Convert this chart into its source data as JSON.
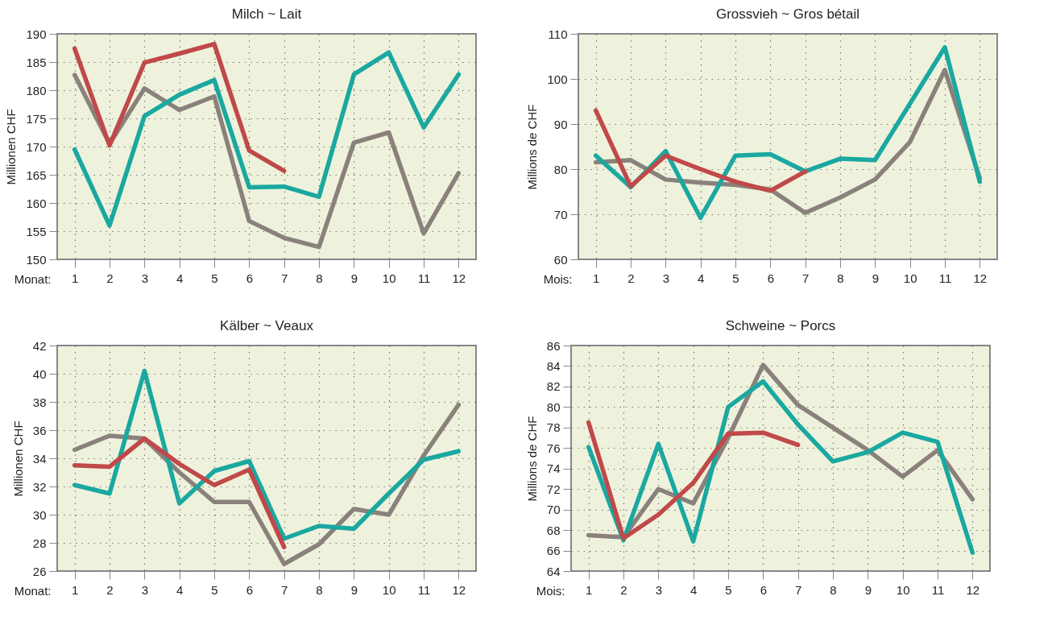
{
  "chart_data": [
    {
      "type": "line",
      "title": "Milch ~ Lait",
      "xlabel": "Monat:",
      "ylabel": "Millionen CHF",
      "x": [
        1,
        2,
        3,
        4,
        5,
        6,
        7,
        8,
        9,
        10,
        11,
        12
      ],
      "xlim": [
        0.5,
        12.5
      ],
      "xticks": [
        1,
        2,
        3,
        4,
        5,
        6,
        7,
        8,
        9,
        10,
        11,
        12
      ],
      "ylim": [
        150,
        190
      ],
      "yticks": [
        150,
        155,
        160,
        165,
        170,
        175,
        180,
        185,
        190
      ],
      "grid": true,
      "legend": false,
      "line_style": "solid",
      "marker": "none",
      "series": [
        {
          "color": "#8a817c",
          "values": [
            182.7,
            170.5,
            180.3,
            176.5,
            178.9,
            156.8,
            153.8,
            152.2,
            170.7,
            172.5,
            154.6,
            165.3
          ]
        },
        {
          "color": "#1aa8a0",
          "values": [
            169.5,
            156.0,
            175.4,
            179.2,
            181.8,
            162.8,
            162.9,
            161.1,
            182.8,
            186.7,
            173.4,
            182.8
          ]
        },
        {
          "color": "#c0494a",
          "x": [
            1,
            2,
            3,
            4,
            5,
            6,
            7
          ],
          "values": [
            187.4,
            170.2,
            184.9,
            186.5,
            188.2,
            169.3,
            165.7
          ]
        }
      ]
    },
    {
      "type": "line",
      "title": "Grossvieh ~ Gros bétail",
      "xlabel": "Mois:",
      "ylabel": "Millions de CHF",
      "x": [
        1,
        2,
        3,
        4,
        5,
        6,
        7,
        8,
        9,
        10,
        11,
        12
      ],
      "xlim": [
        0.5,
        12.5
      ],
      "xticks": [
        1,
        2,
        3,
        4,
        5,
        6,
        7,
        8,
        9,
        10,
        11,
        12
      ],
      "ylim": [
        60,
        110
      ],
      "yticks": [
        60,
        70,
        80,
        90,
        100,
        110
      ],
      "grid": true,
      "legend": false,
      "line_style": "solid",
      "marker": "none",
      "series": [
        {
          "color": "#8a817c",
          "values": [
            81.5,
            82.0,
            77.7,
            77.0,
            76.5,
            75.5,
            70.3,
            73.7,
            77.7,
            86.0,
            102.0,
            78.0
          ]
        },
        {
          "color": "#1aa8a0",
          "values": [
            83.0,
            76.0,
            84.0,
            69.2,
            83.0,
            83.3,
            79.5,
            82.3,
            82.0,
            94.5,
            107.0,
            77.2
          ]
        },
        {
          "color": "#c0494a",
          "x": [
            1,
            2,
            3,
            4,
            5,
            6,
            7
          ],
          "values": [
            93.0,
            76.2,
            83.0,
            80.0,
            77.2,
            75.2,
            79.5
          ]
        }
      ]
    },
    {
      "type": "line",
      "title": "Kälber ~ Veaux",
      "xlabel": "Monat:",
      "ylabel": "Millionen CHF",
      "x": [
        1,
        2,
        3,
        4,
        5,
        6,
        7,
        8,
        9,
        10,
        11,
        12
      ],
      "xlim": [
        0.5,
        12.5
      ],
      "xticks": [
        1,
        2,
        3,
        4,
        5,
        6,
        7,
        8,
        9,
        10,
        11,
        12
      ],
      "ylim": [
        26,
        42
      ],
      "yticks": [
        26,
        28,
        30,
        32,
        34,
        36,
        38,
        40,
        42
      ],
      "grid": true,
      "legend": false,
      "line_style": "solid",
      "marker": "none",
      "series": [
        {
          "color": "#8a817c",
          "values": [
            34.6,
            35.6,
            35.4,
            33.0,
            30.9,
            30.9,
            26.5,
            27.9,
            30.4,
            30.0,
            34.2,
            37.8
          ]
        },
        {
          "color": "#1aa8a0",
          "values": [
            32.1,
            31.5,
            40.2,
            30.8,
            33.1,
            33.8,
            28.3,
            29.2,
            29.0,
            31.5,
            33.9,
            34.5
          ]
        },
        {
          "color": "#c0494a",
          "x": [
            1,
            2,
            3,
            4,
            5,
            6,
            7
          ],
          "values": [
            33.5,
            33.4,
            35.4,
            33.6,
            32.1,
            33.2,
            27.7
          ]
        }
      ]
    },
    {
      "type": "line",
      "title": "Schweine ~ Porcs",
      "xlabel": "Mois:",
      "ylabel": "Millions de CHF",
      "x": [
        1,
        2,
        3,
        4,
        5,
        6,
        7,
        8,
        9,
        10,
        11,
        12
      ],
      "xlim": [
        0.5,
        12.5
      ],
      "xticks": [
        1,
        2,
        3,
        4,
        5,
        6,
        7,
        8,
        9,
        10,
        11,
        12
      ],
      "ylim": [
        64,
        86
      ],
      "yticks": [
        64,
        66,
        68,
        70,
        72,
        74,
        76,
        78,
        80,
        82,
        84,
        86
      ],
      "grid": true,
      "legend": false,
      "line_style": "solid",
      "marker": "none",
      "series": [
        {
          "color": "#8a817c",
          "values": [
            67.5,
            67.3,
            72.0,
            70.6,
            77.0,
            84.1,
            80.2,
            78.0,
            75.8,
            73.2,
            75.8,
            71.0
          ]
        },
        {
          "color": "#1aa8a0",
          "values": [
            76.1,
            67.0,
            76.4,
            66.9,
            80.0,
            82.5,
            78.3,
            74.7,
            75.6,
            77.5,
            76.6,
            65.8
          ]
        },
        {
          "color": "#c0494a",
          "x": [
            1,
            2,
            3,
            4,
            5,
            6,
            7
          ],
          "values": [
            78.5,
            67.2,
            69.5,
            72.6,
            77.4,
            77.5,
            76.3
          ]
        }
      ]
    }
  ]
}
